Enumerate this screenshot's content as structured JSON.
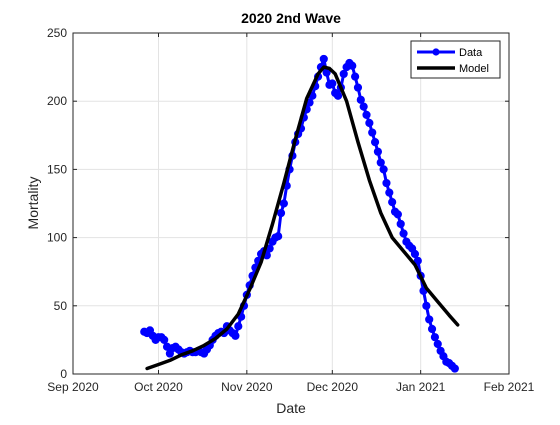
{
  "chart_data": {
    "type": "line",
    "title": "2020 2nd Wave",
    "xlabel": "Date",
    "ylabel": "Mortality",
    "xlim": [
      "2020-09-01",
      "2021-02-01"
    ],
    "ylim": [
      0,
      250
    ],
    "x_ticks": [
      {
        "date": "2020-09-01",
        "label": "Sep 2020"
      },
      {
        "date": "2020-10-01",
        "label": "Oct 2020"
      },
      {
        "date": "2020-11-01",
        "label": "Nov 2020"
      },
      {
        "date": "2020-12-01",
        "label": "Dec 2020"
      },
      {
        "date": "2021-01-01",
        "label": "Jan 2021"
      },
      {
        "date": "2021-02-01",
        "label": "Feb 2021"
      }
    ],
    "y_ticks": [
      0,
      50,
      100,
      150,
      200,
      250
    ],
    "grid": true,
    "legend_position": "top-right",
    "series": [
      {
        "name": "Data",
        "color": "#0000ff",
        "marker": "circle",
        "points": [
          [
            "2020-09-26",
            31
          ],
          [
            "2020-09-27",
            30
          ],
          [
            "2020-09-28",
            32
          ],
          [
            "2020-09-29",
            28
          ],
          [
            "2020-09-30",
            25
          ],
          [
            "2020-10-01",
            27
          ],
          [
            "2020-10-02",
            27
          ],
          [
            "2020-10-03",
            25
          ],
          [
            "2020-10-04",
            20
          ],
          [
            "2020-10-05",
            15
          ],
          [
            "2020-10-06",
            19
          ],
          [
            "2020-10-07",
            20
          ],
          [
            "2020-10-08",
            18
          ],
          [
            "2020-10-09",
            16
          ],
          [
            "2020-10-10",
            15
          ],
          [
            "2020-10-11",
            16
          ],
          [
            "2020-10-12",
            17
          ],
          [
            "2020-10-13",
            16
          ],
          [
            "2020-10-14",
            16
          ],
          [
            "2020-10-15",
            17
          ],
          [
            "2020-10-16",
            16
          ],
          [
            "2020-10-17",
            15
          ],
          [
            "2020-10-18",
            18
          ],
          [
            "2020-10-19",
            21
          ],
          [
            "2020-10-20",
            25
          ],
          [
            "2020-10-21",
            28
          ],
          [
            "2020-10-22",
            30
          ],
          [
            "2020-10-23",
            31
          ],
          [
            "2020-10-24",
            30
          ],
          [
            "2020-10-25",
            35
          ],
          [
            "2020-10-26",
            32
          ],
          [
            "2020-10-27",
            30
          ],
          [
            "2020-10-28",
            28
          ],
          [
            "2020-10-29",
            35
          ],
          [
            "2020-10-30",
            42
          ],
          [
            "2020-10-31",
            50
          ],
          [
            "2020-11-01",
            58
          ],
          [
            "2020-11-02",
            65
          ],
          [
            "2020-11-03",
            72
          ],
          [
            "2020-11-04",
            78
          ],
          [
            "2020-11-05",
            83
          ],
          [
            "2020-11-06",
            88
          ],
          [
            "2020-11-07",
            90
          ],
          [
            "2020-11-08",
            87
          ],
          [
            "2020-11-09",
            92
          ],
          [
            "2020-11-10",
            97
          ],
          [
            "2020-11-11",
            100
          ],
          [
            "2020-11-12",
            101
          ],
          [
            "2020-11-13",
            118
          ],
          [
            "2020-11-14",
            125
          ],
          [
            "2020-11-15",
            138
          ],
          [
            "2020-11-16",
            150
          ],
          [
            "2020-11-17",
            160
          ],
          [
            "2020-11-18",
            170
          ],
          [
            "2020-11-19",
            176
          ],
          [
            "2020-11-20",
            180
          ],
          [
            "2020-11-21",
            188
          ],
          [
            "2020-11-22",
            194
          ],
          [
            "2020-11-23",
            199
          ],
          [
            "2020-11-24",
            204
          ],
          [
            "2020-11-25",
            211
          ],
          [
            "2020-11-26",
            218
          ],
          [
            "2020-11-27",
            225
          ],
          [
            "2020-11-28",
            231
          ],
          [
            "2020-11-29",
            221
          ],
          [
            "2020-11-30",
            212
          ],
          [
            "2020-12-01",
            213
          ],
          [
            "2020-12-02",
            206
          ],
          [
            "2020-12-03",
            204
          ],
          [
            "2020-12-04",
            210
          ],
          [
            "2020-12-05",
            220
          ],
          [
            "2020-12-06",
            225
          ],
          [
            "2020-12-07",
            228
          ],
          [
            "2020-12-08",
            226
          ],
          [
            "2020-12-09",
            218
          ],
          [
            "2020-12-10",
            210
          ],
          [
            "2020-12-11",
            201
          ],
          [
            "2020-12-12",
            196
          ],
          [
            "2020-12-13",
            190
          ],
          [
            "2020-12-14",
            184
          ],
          [
            "2020-12-15",
            177
          ],
          [
            "2020-12-16",
            170
          ],
          [
            "2020-12-17",
            163
          ],
          [
            "2020-12-18",
            155
          ],
          [
            "2020-12-19",
            150
          ],
          [
            "2020-12-20",
            140
          ],
          [
            "2020-12-21",
            133
          ],
          [
            "2020-12-22",
            126
          ],
          [
            "2020-12-23",
            119
          ],
          [
            "2020-12-24",
            117
          ],
          [
            "2020-12-25",
            110
          ],
          [
            "2020-12-26",
            103
          ],
          [
            "2020-12-27",
            97
          ],
          [
            "2020-12-28",
            94
          ],
          [
            "2020-12-29",
            92
          ],
          [
            "2020-12-30",
            88
          ],
          [
            "2020-12-31",
            83
          ],
          [
            "2021-01-01",
            72
          ],
          [
            "2021-01-02",
            61
          ],
          [
            "2021-01-03",
            50
          ],
          [
            "2021-01-04",
            40
          ],
          [
            "2021-01-05",
            33
          ],
          [
            "2021-01-06",
            27
          ],
          [
            "2021-01-07",
            22
          ],
          [
            "2021-01-08",
            17
          ],
          [
            "2021-01-09",
            13
          ],
          [
            "2021-01-10",
            9
          ],
          [
            "2021-01-11",
            8
          ],
          [
            "2021-01-12",
            6
          ],
          [
            "2021-01-13",
            4
          ]
        ]
      },
      {
        "name": "Model",
        "color": "#000000",
        "marker": "none",
        "points": [
          [
            "2020-09-27",
            4
          ],
          [
            "2020-10-01",
            7
          ],
          [
            "2020-10-05",
            10
          ],
          [
            "2020-10-09",
            14
          ],
          [
            "2020-10-13",
            17
          ],
          [
            "2020-10-17",
            21
          ],
          [
            "2020-10-21",
            26
          ],
          [
            "2020-10-25",
            33
          ],
          [
            "2020-10-29",
            44
          ],
          [
            "2020-11-02",
            62
          ],
          [
            "2020-11-06",
            82
          ],
          [
            "2020-11-10",
            110
          ],
          [
            "2020-11-14",
            140
          ],
          [
            "2020-11-18",
            172
          ],
          [
            "2020-11-22",
            202
          ],
          [
            "2020-11-26",
            220
          ],
          [
            "2020-11-28",
            225
          ],
          [
            "2020-11-30",
            224
          ],
          [
            "2020-12-02",
            220
          ],
          [
            "2020-12-06",
            200
          ],
          [
            "2020-12-10",
            170
          ],
          [
            "2020-12-14",
            142
          ],
          [
            "2020-12-18",
            118
          ],
          [
            "2020-12-22",
            100
          ],
          [
            "2020-12-26",
            90
          ],
          [
            "2020-12-30",
            80
          ],
          [
            "2021-01-03",
            63
          ],
          [
            "2021-01-07",
            53
          ],
          [
            "2021-01-11",
            43
          ],
          [
            "2021-01-14",
            36
          ]
        ]
      }
    ]
  }
}
